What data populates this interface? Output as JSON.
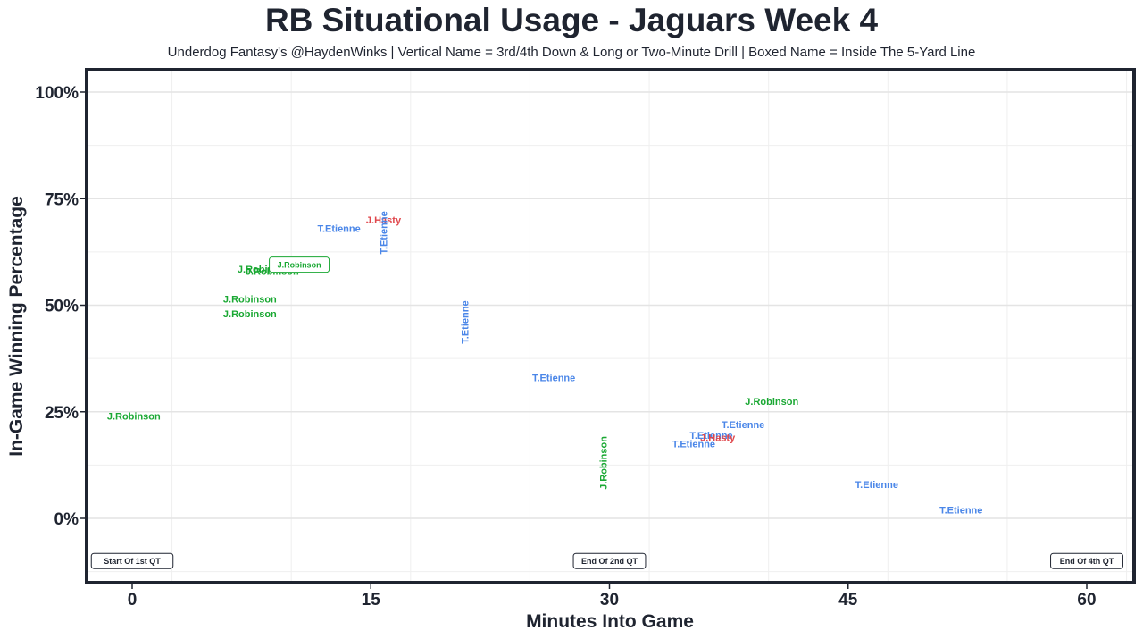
{
  "chart_data": {
    "type": "scatter",
    "title": "RB Situational Usage - Jaguars Week 4",
    "subtitle": "Underdog Fantasy's @HaydenWinks | Vertical Name = 3rd/4th Down & Long or Two-Minute Drill | Boxed Name = Inside The 5-Yard Line",
    "xlabel": "Minutes Into Game",
    "ylabel": "In-Game Winning Percentage",
    "xlim": [
      -2.5,
      63
    ],
    "ylim": [
      -15,
      105
    ],
    "x_ticks": [
      0,
      15,
      30,
      45,
      60
    ],
    "x_tick_labels": [
      "0",
      "15",
      "30",
      "45",
      "60"
    ],
    "y_ticks": [
      0,
      25,
      50,
      75,
      100
    ],
    "y_tick_labels": [
      "0%",
      "25%",
      "50%",
      "75%",
      "100%"
    ],
    "grid": true,
    "colors": {
      "J.Robinson": "#1aa833",
      "T.Etienne": "#4a86e8",
      "J.Hasty": "#e0474c"
    },
    "points": [
      {
        "x": 0.1,
        "y": 24,
        "player": "J.Robinson",
        "style": "normal"
      },
      {
        "x": 7.4,
        "y": 51.5,
        "player": "J.Robinson",
        "style": "normal"
      },
      {
        "x": 7.4,
        "y": 48,
        "player": "J.Robinson",
        "style": "normal"
      },
      {
        "x": 8.8,
        "y": 58,
        "player": "J.Robinson",
        "style": "normal"
      },
      {
        "x": 8.3,
        "y": 58.5,
        "player": "J.Robinson",
        "style": "normal"
      },
      {
        "x": 10.5,
        "y": 59.5,
        "player": "J.Robinson",
        "style": "boxed"
      },
      {
        "x": 13.0,
        "y": 68,
        "player": "T.Etienne",
        "style": "normal"
      },
      {
        "x": 15.8,
        "y": 70,
        "player": "J.Hasty",
        "style": "normal"
      },
      {
        "x": 15.8,
        "y": 67,
        "player": "T.Etienne",
        "style": "vertical"
      },
      {
        "x": 20.9,
        "y": 46,
        "player": "T.Etienne",
        "style": "vertical"
      },
      {
        "x": 26.5,
        "y": 33,
        "player": "T.Etienne",
        "style": "normal"
      },
      {
        "x": 29.6,
        "y": 13,
        "player": "J.Robinson",
        "style": "vertical"
      },
      {
        "x": 40.2,
        "y": 27.5,
        "player": "J.Robinson",
        "style": "normal"
      },
      {
        "x": 38.4,
        "y": 22,
        "player": "T.Etienne",
        "style": "normal"
      },
      {
        "x": 36.4,
        "y": 19.5,
        "player": "T.Etienne",
        "style": "normal"
      },
      {
        "x": 36.8,
        "y": 19,
        "player": "J.Hasty",
        "style": "normal"
      },
      {
        "x": 35.3,
        "y": 17.5,
        "player": "T.Etienne",
        "style": "normal"
      },
      {
        "x": 46.8,
        "y": 8,
        "player": "T.Etienne",
        "style": "normal"
      },
      {
        "x": 52.1,
        "y": 2,
        "player": "T.Etienne",
        "style": "normal"
      }
    ],
    "markers": [
      {
        "x": 0,
        "y": -10,
        "label": "Start Of 1st QT"
      },
      {
        "x": 30,
        "y": -10,
        "label": "End Of 2nd QT"
      },
      {
        "x": 60,
        "y": -10,
        "label": "End Of 4th QT"
      }
    ]
  }
}
